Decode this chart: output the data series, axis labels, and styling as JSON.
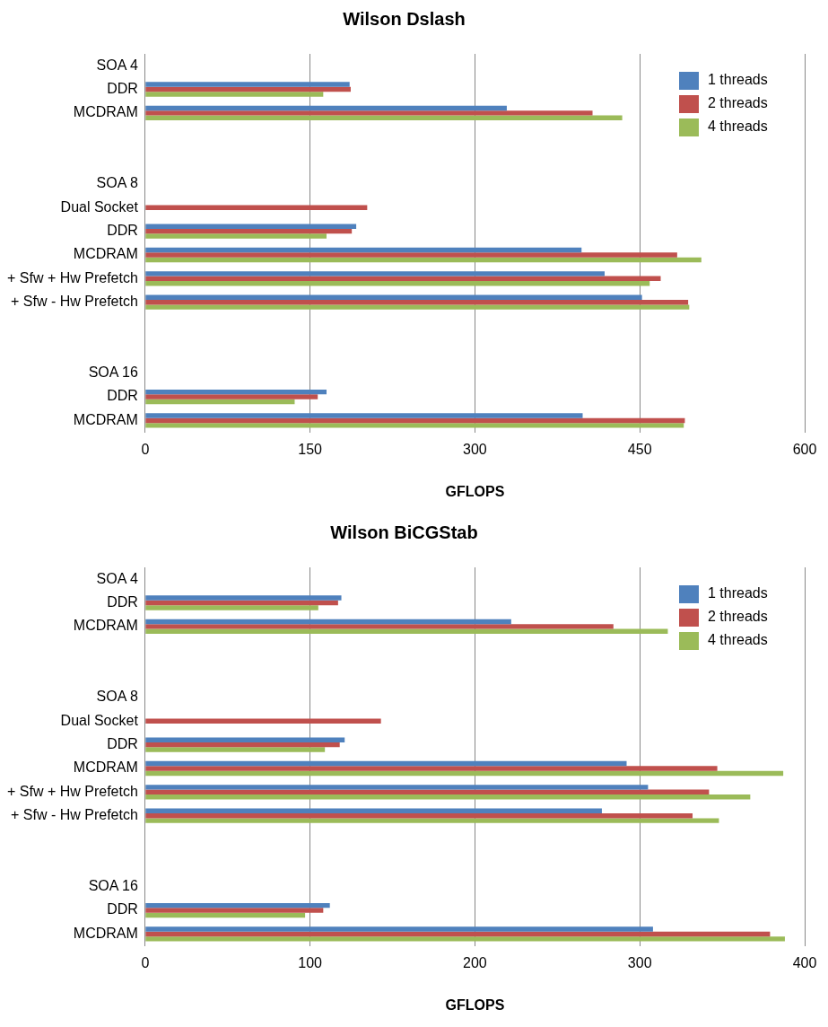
{
  "chart_data": [
    {
      "type": "bar",
      "orientation": "horizontal",
      "title": "Wilson Dslash",
      "xlabel": "GFLOPS",
      "categories": [
        "SOA 4",
        "DDR",
        "MCDRAM",
        null,
        null,
        "SOA 8",
        "Dual Socket",
        "DDR",
        "MCDRAM",
        "+ Sfw + Hw Prefetch",
        "+ Sfw - Hw Prefetch",
        null,
        null,
        "SOA 16",
        "DDR",
        "MCDRAM"
      ],
      "series": [
        {
          "name": "1 threads",
          "color": "#4f81bd",
          "values": [
            null,
            186,
            329,
            null,
            null,
            null,
            null,
            192,
            397,
            418,
            452,
            null,
            null,
            null,
            165,
            398
          ]
        },
        {
          "name": "2 threads",
          "color": "#c0504d",
          "values": [
            null,
            187,
            407,
            null,
            null,
            null,
            202,
            188,
            484,
            469,
            494,
            null,
            null,
            null,
            157,
            491
          ]
        },
        {
          "name": "4 threads",
          "color": "#9bbb59",
          "values": [
            null,
            162,
            434,
            null,
            null,
            null,
            null,
            165,
            506,
            459,
            495,
            null,
            null,
            null,
            136,
            490
          ]
        }
      ],
      "xlim": [
        0,
        600
      ],
      "xticks": [
        0,
        150,
        300,
        450,
        600
      ],
      "grid": "x",
      "legend": "top right"
    },
    {
      "type": "bar",
      "orientation": "horizontal",
      "title": "Wilson BiCGStab",
      "xlabel": "GFLOPS",
      "categories": [
        "SOA 4",
        "DDR",
        "MCDRAM",
        null,
        null,
        "SOA 8",
        "Dual Socket",
        "DDR",
        "MCDRAM",
        "+ Sfw + Hw Prefetch",
        "+ Sfw - Hw Prefetch",
        null,
        null,
        "SOA 16",
        "DDR",
        "MCDRAM"
      ],
      "series": [
        {
          "name": "1 threads",
          "color": "#4f81bd",
          "values": [
            null,
            119,
            222,
            null,
            null,
            null,
            null,
            121,
            292,
            305,
            277,
            null,
            null,
            null,
            112,
            308
          ]
        },
        {
          "name": "2 threads",
          "color": "#c0504d",
          "values": [
            null,
            117,
            284,
            null,
            null,
            null,
            143,
            118,
            347,
            342,
            332,
            null,
            null,
            null,
            108,
            379
          ]
        },
        {
          "name": "4 threads",
          "color": "#9bbb59",
          "values": [
            null,
            105,
            317,
            null,
            null,
            null,
            null,
            109,
            387,
            367,
            348,
            null,
            null,
            null,
            97,
            388
          ]
        }
      ],
      "xlim": [
        0,
        400
      ],
      "xticks": [
        0,
        100,
        200,
        300,
        400
      ],
      "grid": "x",
      "legend": "top right"
    }
  ]
}
